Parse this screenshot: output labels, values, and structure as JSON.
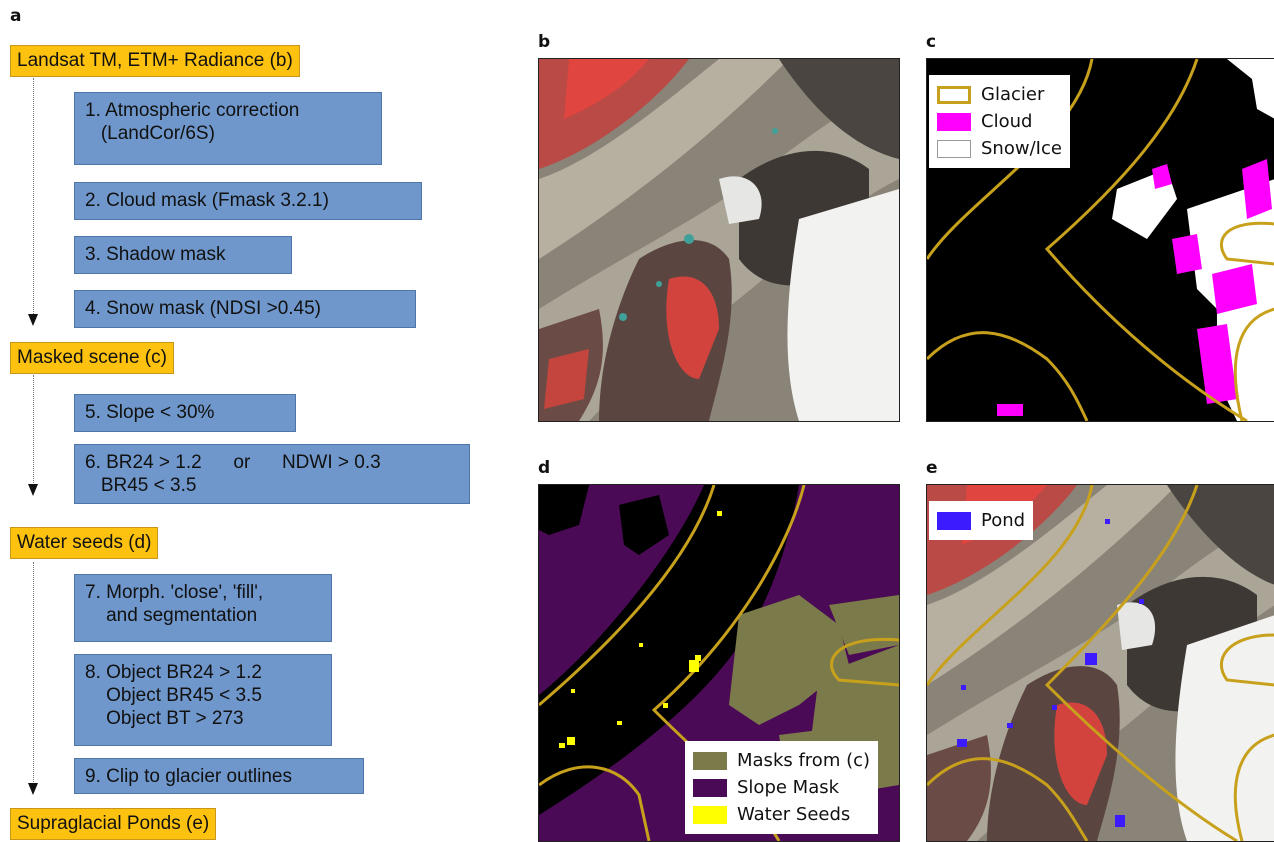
{
  "labels": {
    "a": "a",
    "b": "b",
    "c": "c",
    "d": "d",
    "e": "e"
  },
  "flow": {
    "input": "Landsat TM, ETM+ Radiance (b)",
    "step1": "1. Atmospheric correction\n   (LandCor/6S)",
    "step2": "2. Cloud mask (Fmask 3.2.1)",
    "step3": "3. Shadow mask",
    "step4": "4. Snow mask (NDSI >0.45)",
    "masked": "Masked scene (c)",
    "step5": "5. Slope < 30%",
    "step6": "6. BR24 > 1.2      or      NDWI > 0.3\n   BR45 < 3.5",
    "seeds": "Water seeds (d)",
    "step7": "7. Morph. 'close', 'fill',\n    and segmentation",
    "step8": "8. Object BR24 > 1.2\n    Object BR45 < 3.5\n    Object BT > 273",
    "step9": "9. Clip to glacier outlines",
    "output": "Supraglacial Ponds (e)"
  },
  "legend_c": [
    {
      "label": "Glacier",
      "color": "#c8a11c",
      "icon": "outline-swatch"
    },
    {
      "label": "Cloud",
      "color": "#ff00ff",
      "icon": "fill-swatch"
    },
    {
      "label": "Snow/Ice",
      "color": "#ffffff",
      "icon": "fill-swatch"
    }
  ],
  "legend_d": [
    {
      "label": "Masks from (c)",
      "color": "#7b7a4a"
    },
    {
      "label": "Slope Mask",
      "color": "#4a0a55"
    },
    {
      "label": "Water Seeds",
      "color": "#ffff00"
    }
  ],
  "legend_e": [
    {
      "label": "Pond",
      "color": "#3d1bff"
    }
  ],
  "colors": {
    "flow_box_yellow": "#fdc20f",
    "flow_box_blue": "#6f97cb",
    "glacier_outline": "#c8a11c"
  }
}
